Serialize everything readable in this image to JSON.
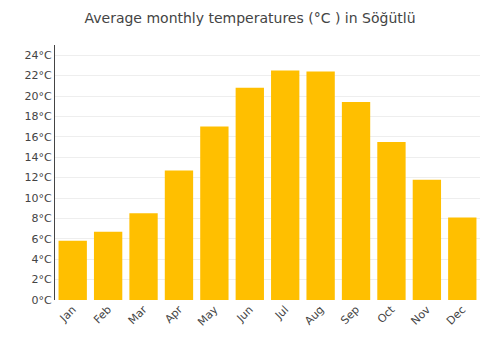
{
  "chart_data": {
    "type": "bar",
    "title": "Average monthly temperatures (°C ) in Söğütlü",
    "categories": [
      "Jan",
      "Feb",
      "Mar",
      "Apr",
      "May",
      "Jun",
      "Jul",
      "Aug",
      "Sep",
      "Oct",
      "Nov",
      "Dec"
    ],
    "values": [
      5.8,
      6.7,
      8.5,
      12.7,
      17.0,
      20.8,
      22.5,
      22.4,
      19.4,
      15.5,
      11.8,
      8.1
    ],
    "color": "#FFBF00",
    "ylim": [
      0,
      25
    ],
    "yticks": [
      {
        "value": 0,
        "label": "0°C"
      },
      {
        "value": 2,
        "label": "2°C"
      },
      {
        "value": 4,
        "label": "4°C"
      },
      {
        "value": 6,
        "label": "6°C"
      },
      {
        "value": 8,
        "label": "8°C"
      },
      {
        "value": 10,
        "label": "10°C"
      },
      {
        "value": 12,
        "label": "12°C"
      },
      {
        "value": 14,
        "label": "14°C"
      },
      {
        "value": 16,
        "label": "16°C"
      },
      {
        "value": 18,
        "label": "18°C"
      },
      {
        "value": 20,
        "label": "20°C"
      },
      {
        "value": 22,
        "label": "22°C"
      },
      {
        "value": 24,
        "label": "24°C"
      }
    ],
    "grid": true
  }
}
